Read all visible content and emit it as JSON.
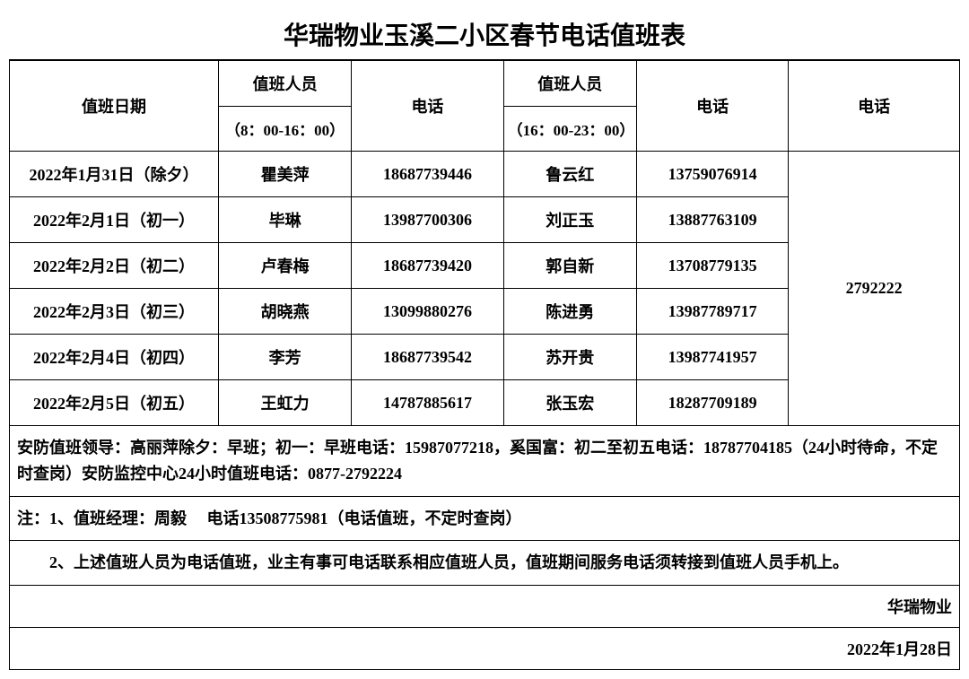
{
  "title": "华瑞物业玉溪二小区春节电话值班表",
  "headers": {
    "date": "值班日期",
    "person1": "值班人员",
    "time1": "（8：00-16：00）",
    "phone1": "电话",
    "person2": "值班人员",
    "time2": "（16：00-23：00）",
    "phone2": "电话",
    "phone3": "电话"
  },
  "rows": [
    {
      "date": "2022年1月31日（除夕）",
      "person1": "瞿美萍",
      "phone1": "18687739446",
      "person2": "鲁云红",
      "phone2": "13759076914"
    },
    {
      "date": "2022年2月1日（初一）",
      "person1": "毕琳",
      "phone1": "13987700306",
      "person2": "刘正玉",
      "phone2": "13887763109"
    },
    {
      "date": "2022年2月2日（初二）",
      "person1": "卢春梅",
      "phone1": "18687739420",
      "person2": "郭自新",
      "phone2": "13708779135"
    },
    {
      "date": "2022年2月3日（初三）",
      "person1": "胡晓燕",
      "phone1": "13099880276",
      "person2": "陈进勇",
      "phone2": "13987789717"
    },
    {
      "date": "2022年2月4日（初四）",
      "person1": "李芳",
      "phone1": "18687739542",
      "person2": "苏开贵",
      "phone2": "13987741957"
    },
    {
      "date": "2022年2月5日（初五）",
      "person1": "王虹力",
      "phone1": "14787885617",
      "person2": "张玉宏",
      "phone2": "18287709189"
    }
  ],
  "shared_phone": "2792222",
  "notes": {
    "security": "安防值班领导：高丽萍除夕：早班；初一：早班电话：15987077218，奚国富：初二至初五电话：18787704185（24小时待命，不定时查岗）安防监控中心24小时值班电话：0877-2792224",
    "note1": "注：1、值班经理：周毅   电话13508775981（电话值班，不定时查岗）",
    "note2": "  2、上述值班人员为电话值班，业主有事可电话联系相应值班人员，值班期间服务电话须转接到值班人员手机上。"
  },
  "footer": {
    "company": "华瑞物业",
    "date": "2022年1月28日"
  },
  "styling": {
    "border_color": "#000000",
    "background_color": "#ffffff",
    "title_fontsize": 28,
    "cell_fontsize": 18,
    "font_family": "SimSun"
  }
}
